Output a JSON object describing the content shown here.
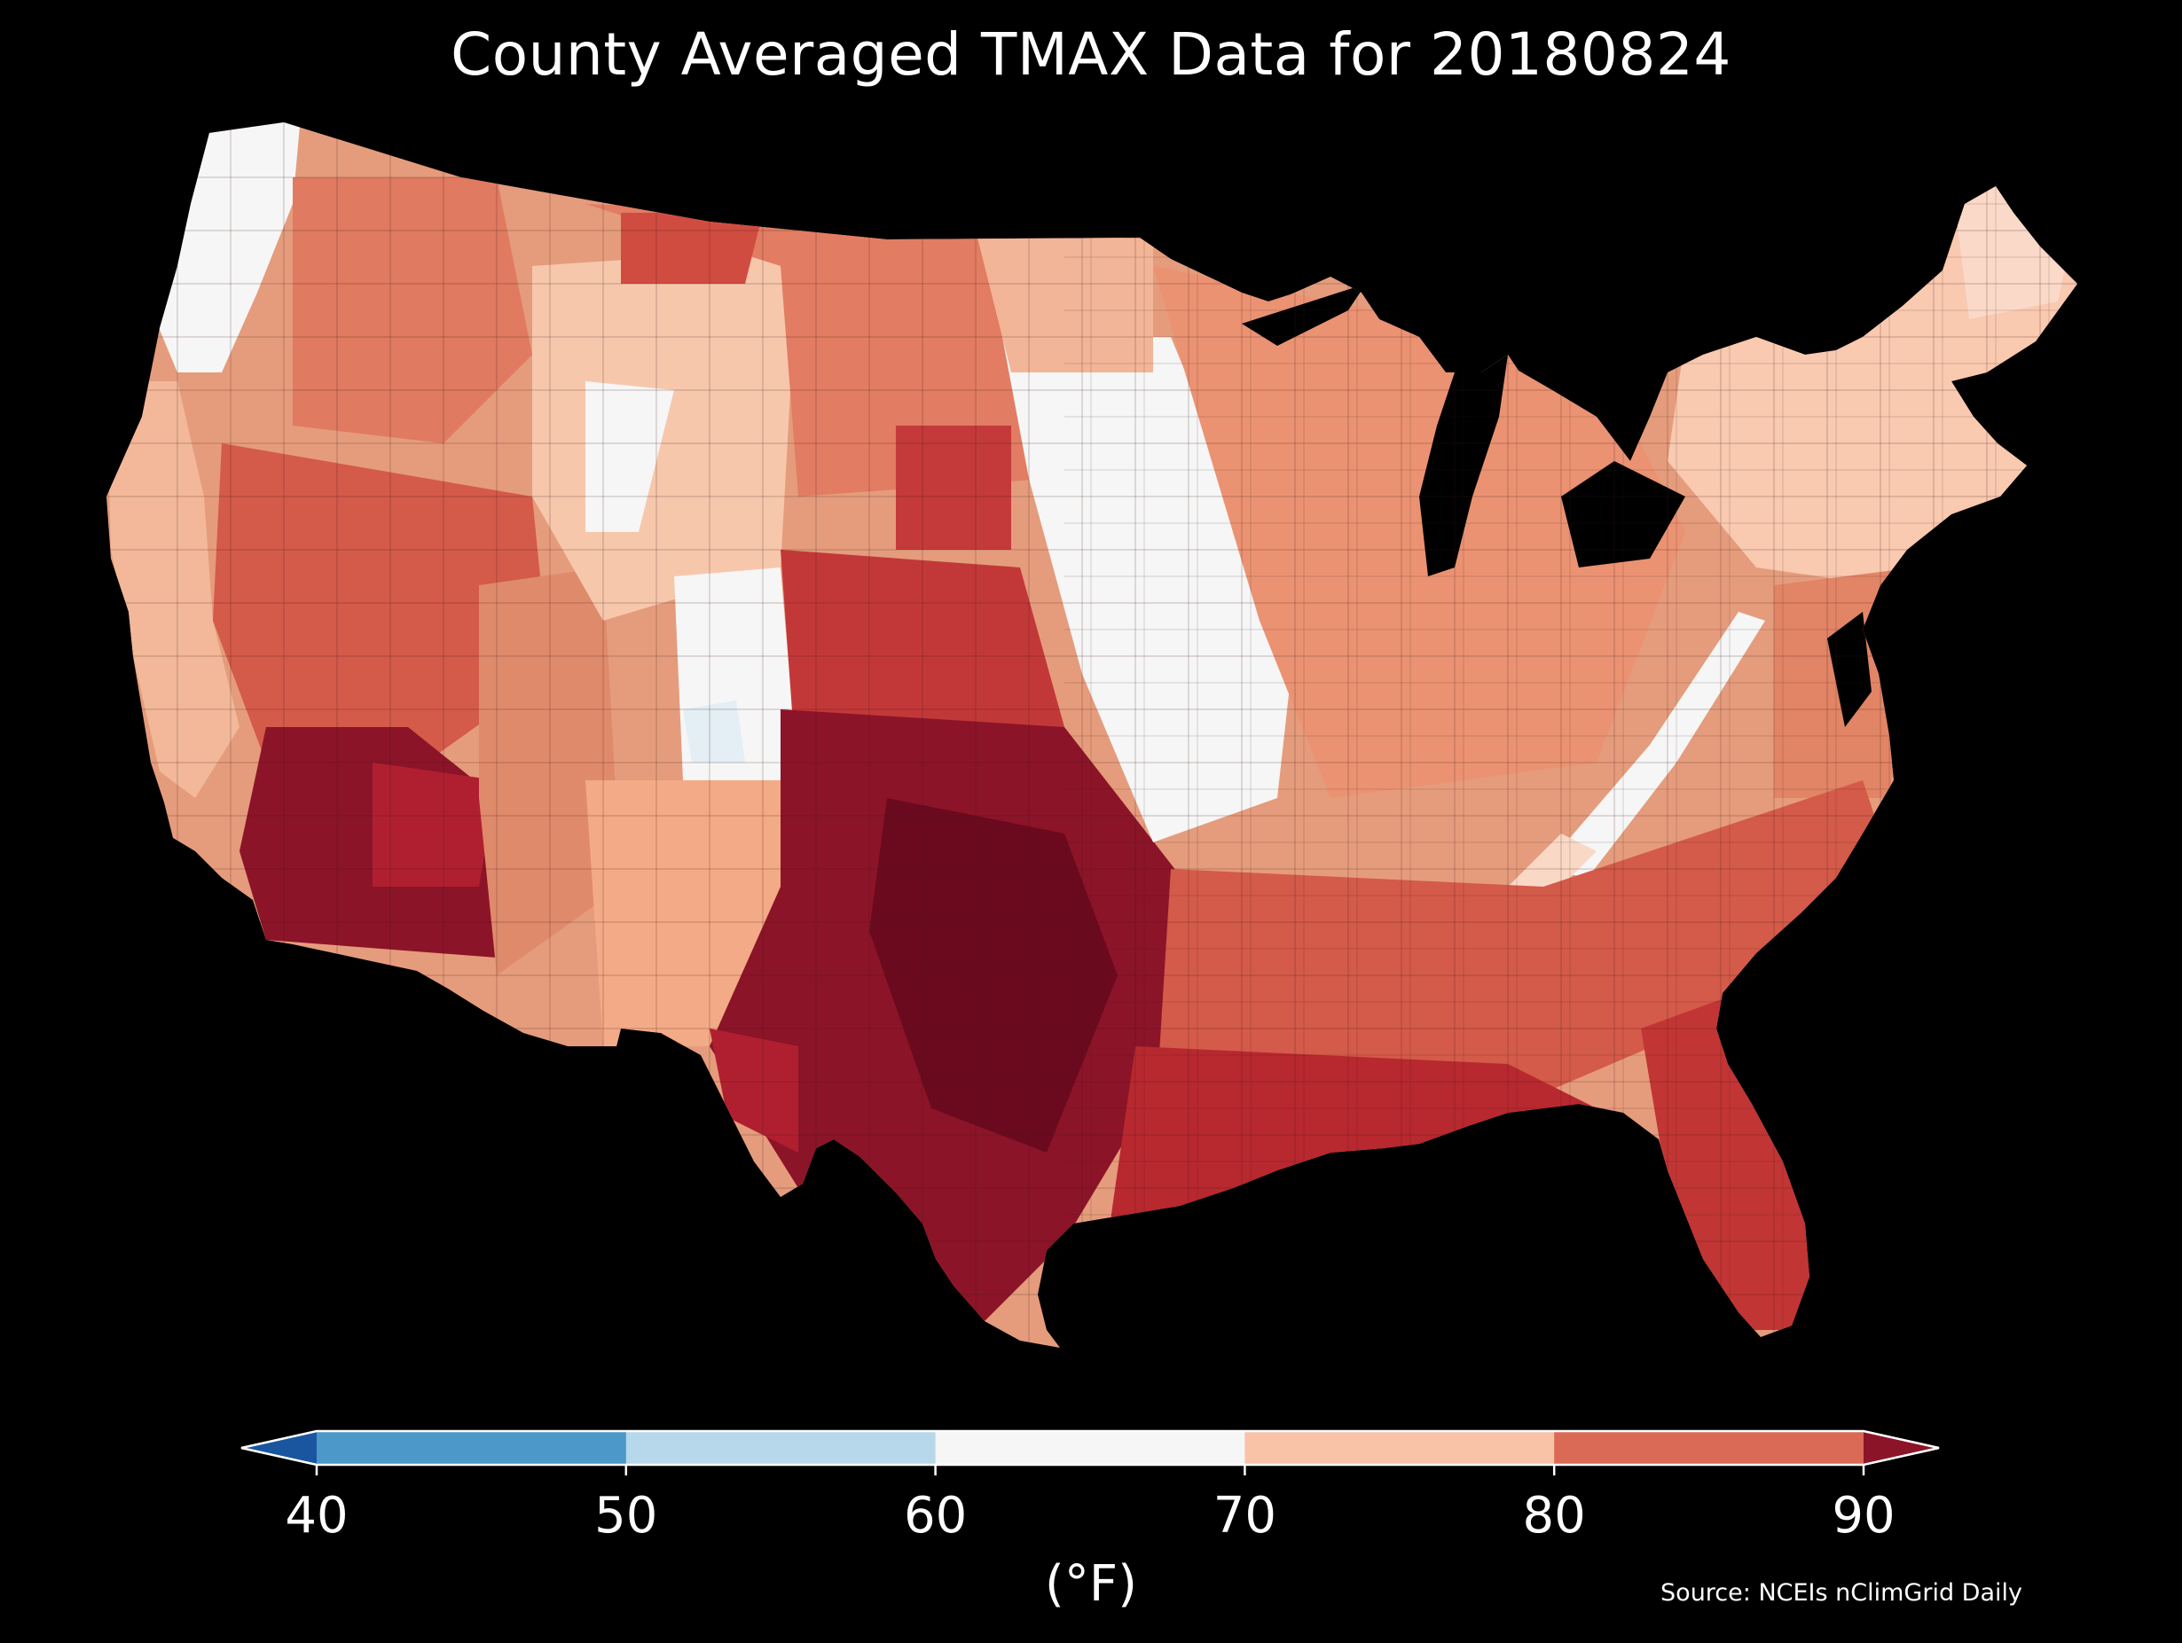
{
  "chart_data": {
    "type": "choropleth",
    "title": "County Averaged TMAX Data for 20180824",
    "colorbar": {
      "label": "(°F)",
      "ticks": [
        40,
        50,
        60,
        70,
        80,
        90
      ],
      "tick_labels": [
        "40",
        "50",
        "60",
        "70",
        "80",
        "90"
      ],
      "bins": [
        {
          "range": "<40",
          "color": "#1a56a0"
        },
        {
          "range": "40-50",
          "color": "#4b98c9"
        },
        {
          "range": "50-60",
          "color": "#b7d8ea"
        },
        {
          "range": "60-70",
          "color": "#f6f6f6"
        },
        {
          "range": "70-80",
          "color": "#f9c3a7"
        },
        {
          "range": "80-90",
          "color": "#da6a56"
        },
        {
          "range": ">90",
          "color": "#8c1428"
        }
      ],
      "extend": "both"
    },
    "regions": [
      {
        "region": "Pacific Northwest coast",
        "approx_tmax_f": 62
      },
      {
        "region": "Interior Northwest",
        "approx_tmax_f": 78
      },
      {
        "region": "California coast",
        "approx_tmax_f": 76
      },
      {
        "region": "Nevada / interior California",
        "approx_tmax_f": 86
      },
      {
        "region": "Desert Southwest (SE California, SW Arizona)",
        "approx_tmax_f": 96
      },
      {
        "region": "Northern Rockies",
        "approx_tmax_f": 72
      },
      {
        "region": "Central Rockies (Colorado)",
        "approx_tmax_f": 62
      },
      {
        "region": "New Mexico",
        "approx_tmax_f": 76
      },
      {
        "region": "Northern Plains",
        "approx_tmax_f": 82
      },
      {
        "region": "Southern Plains (Oklahoma)",
        "approx_tmax_f": 92
      },
      {
        "region": "Texas",
        "approx_tmax_f": 96
      },
      {
        "region": "Upper Midwest (Minnesota/Iowa)",
        "approx_tmax_f": 68
      },
      {
        "region": "Great Lakes",
        "approx_tmax_f": 76
      },
      {
        "region": "Ohio Valley",
        "approx_tmax_f": 78
      },
      {
        "region": "Appalachians",
        "approx_tmax_f": 68
      },
      {
        "region": "Northeast / New England",
        "approx_tmax_f": 72
      },
      {
        "region": "Mid-Atlantic coast",
        "approx_tmax_f": 80
      },
      {
        "region": "Southeast",
        "approx_tmax_f": 86
      },
      {
        "region": "Gulf Coast",
        "approx_tmax_f": 90
      },
      {
        "region": "Florida",
        "approx_tmax_f": 90
      }
    ]
  },
  "source_note": "Source: NCEIs nClimGrid Daily",
  "colors": {
    "background": "#000000",
    "text": "#ffffff"
  }
}
